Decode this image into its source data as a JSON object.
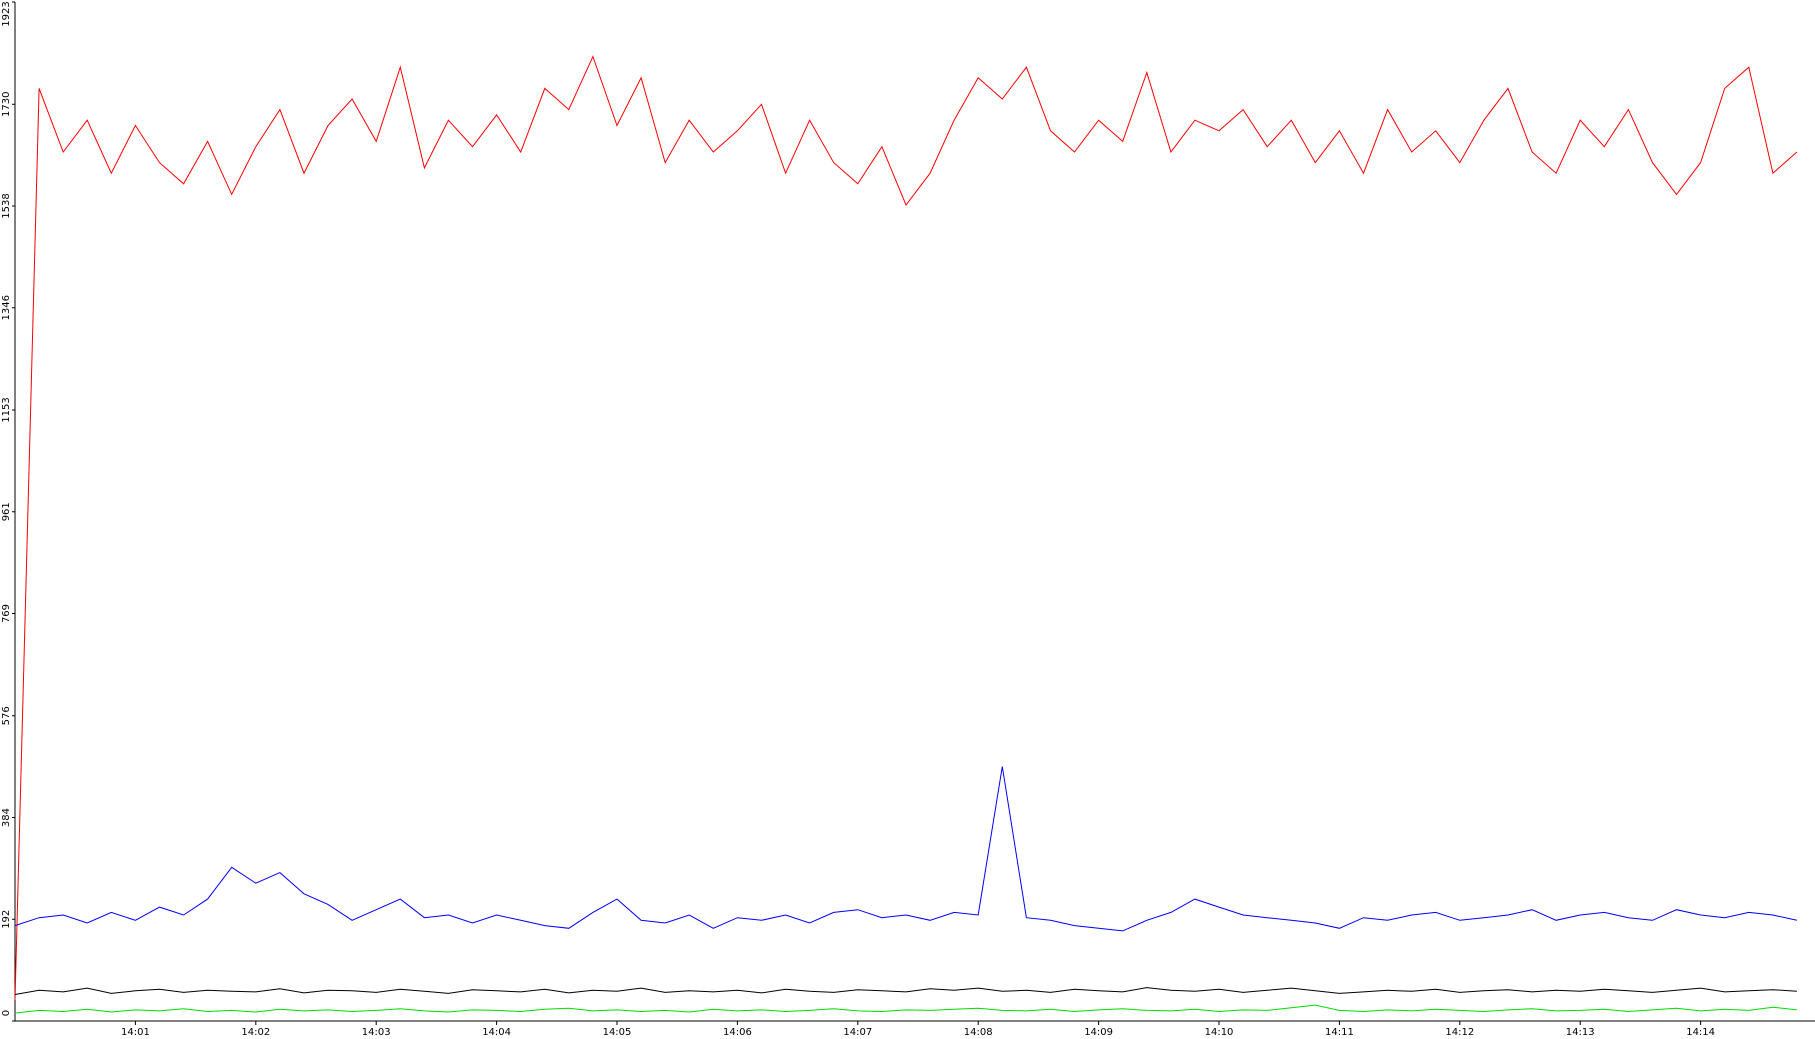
{
  "chart_data": {
    "type": "line",
    "x": [
      0,
      0.2,
      0.4,
      0.6,
      0.8,
      1,
      1.2,
      1.4,
      1.6,
      1.8,
      2,
      2.2,
      2.4,
      2.6,
      2.8,
      3,
      3.2,
      3.4,
      3.6,
      3.8,
      4,
      4.2,
      4.4,
      4.6,
      4.8,
      5,
      5.2,
      5.4,
      5.6,
      5.8,
      6,
      6.2,
      6.4,
      6.6,
      6.8,
      7,
      7.2,
      7.4,
      7.6,
      7.8,
      8,
      8.2,
      8.4,
      8.6,
      8.8,
      9,
      9.2,
      9.4,
      9.6,
      9.8,
      10,
      10.2,
      10.4,
      10.6,
      10.8,
      11,
      11.2,
      11.4,
      11.6,
      11.8,
      12,
      12.2,
      12.4,
      12.6,
      12.8,
      13,
      13.2,
      13.4,
      13.6,
      13.8,
      14,
      14.2,
      14.4,
      14.6,
      14.8
    ],
    "series": [
      {
        "color": "#ff0000",
        "values": [
          40,
          1760,
          1640,
          1700,
          1600,
          1690,
          1620,
          1580,
          1660,
          1560,
          1650,
          1720,
          1600,
          1690,
          1740,
          1660,
          1800,
          1610,
          1700,
          1650,
          1710,
          1640,
          1760,
          1720,
          1820,
          1690,
          1780,
          1620,
          1700,
          1640,
          1680,
          1730,
          1600,
          1700,
          1620,
          1580,
          1650,
          1540,
          1600,
          1700,
          1780,
          1740,
          1800,
          1680,
          1640,
          1700,
          1660,
          1790,
          1640,
          1700,
          1680,
          1720,
          1650,
          1700,
          1620,
          1680,
          1600,
          1720,
          1640,
          1680,
          1620,
          1700,
          1760,
          1640,
          1600,
          1700,
          1650,
          1720,
          1620,
          1560,
          1620,
          1760,
          1800,
          1600,
          1640
        ]
      },
      {
        "color": "#0000ff",
        "values": [
          180,
          195,
          200,
          185,
          205,
          190,
          215,
          200,
          230,
          290,
          260,
          280,
          240,
          220,
          190,
          210,
          230,
          195,
          200,
          185,
          200,
          190,
          180,
          175,
          205,
          230,
          190,
          185,
          200,
          175,
          195,
          190,
          200,
          185,
          205,
          210,
          195,
          200,
          190,
          205,
          200,
          480,
          195,
          190,
          180,
          175,
          170,
          190,
          205,
          230,
          215,
          200,
          195,
          190,
          185,
          175,
          195,
          190,
          200,
          205,
          190,
          195,
          200,
          210,
          190,
          200,
          205,
          195,
          190,
          210,
          200,
          195,
          205,
          200,
          190
        ]
      },
      {
        "color": "#000000",
        "values": [
          50,
          58,
          55,
          62,
          52,
          57,
          60,
          54,
          58,
          56,
          55,
          61,
          53,
          58,
          57,
          54,
          60,
          56,
          52,
          59,
          57,
          55,
          60,
          53,
          58,
          56,
          62,
          54,
          57,
          55,
          58,
          53,
          60,
          56,
          54,
          59,
          57,
          55,
          61,
          58,
          62,
          56,
          58,
          54,
          60,
          57,
          55,
          63,
          58,
          56,
          60,
          54,
          58,
          62,
          57,
          52,
          55,
          58,
          56,
          60,
          54,
          57,
          59,
          55,
          58,
          56,
          60,
          57,
          54,
          58,
          62,
          55,
          57,
          59,
          56
        ]
      },
      {
        "color": "#00dd00",
        "values": [
          15,
          20,
          18,
          22,
          17,
          21,
          19,
          23,
          18,
          20,
          17,
          22,
          19,
          21,
          18,
          20,
          23,
          19,
          17,
          21,
          20,
          18,
          22,
          24,
          19,
          21,
          18,
          20,
          17,
          22,
          19,
          21,
          18,
          20,
          23,
          19,
          18,
          21,
          20,
          22,
          24,
          20,
          19,
          22,
          18,
          21,
          23,
          20,
          19,
          22,
          18,
          21,
          20,
          25,
          30,
          20,
          18,
          21,
          19,
          22,
          20,
          18,
          21,
          23,
          19,
          20,
          22,
          18,
          21,
          24,
          19,
          22,
          20,
          26,
          21
        ]
      }
    ],
    "xlim": [
      0,
      14.95
    ],
    "xticks": [
      {
        "value": 1,
        "label": "14:01"
      },
      {
        "value": 2,
        "label": "14:02"
      },
      {
        "value": 3,
        "label": "14:03"
      },
      {
        "value": 4,
        "label": "14:04"
      },
      {
        "value": 5,
        "label": "14:05"
      },
      {
        "value": 6,
        "label": "14:06"
      },
      {
        "value": 7,
        "label": "14:07"
      },
      {
        "value": 8,
        "label": "14:08"
      },
      {
        "value": 9,
        "label": "14:09"
      },
      {
        "value": 10,
        "label": "14:10"
      },
      {
        "value": 11,
        "label": "14:11"
      },
      {
        "value": 12,
        "label": "14:12"
      },
      {
        "value": 13,
        "label": "14:13"
      },
      {
        "value": 14,
        "label": "14:14"
      }
    ],
    "ylim": [
      0,
      1923
    ],
    "yticks": [
      0,
      192,
      384,
      576,
      769,
      961,
      1153,
      1346,
      1538,
      1730,
      1923
    ]
  }
}
